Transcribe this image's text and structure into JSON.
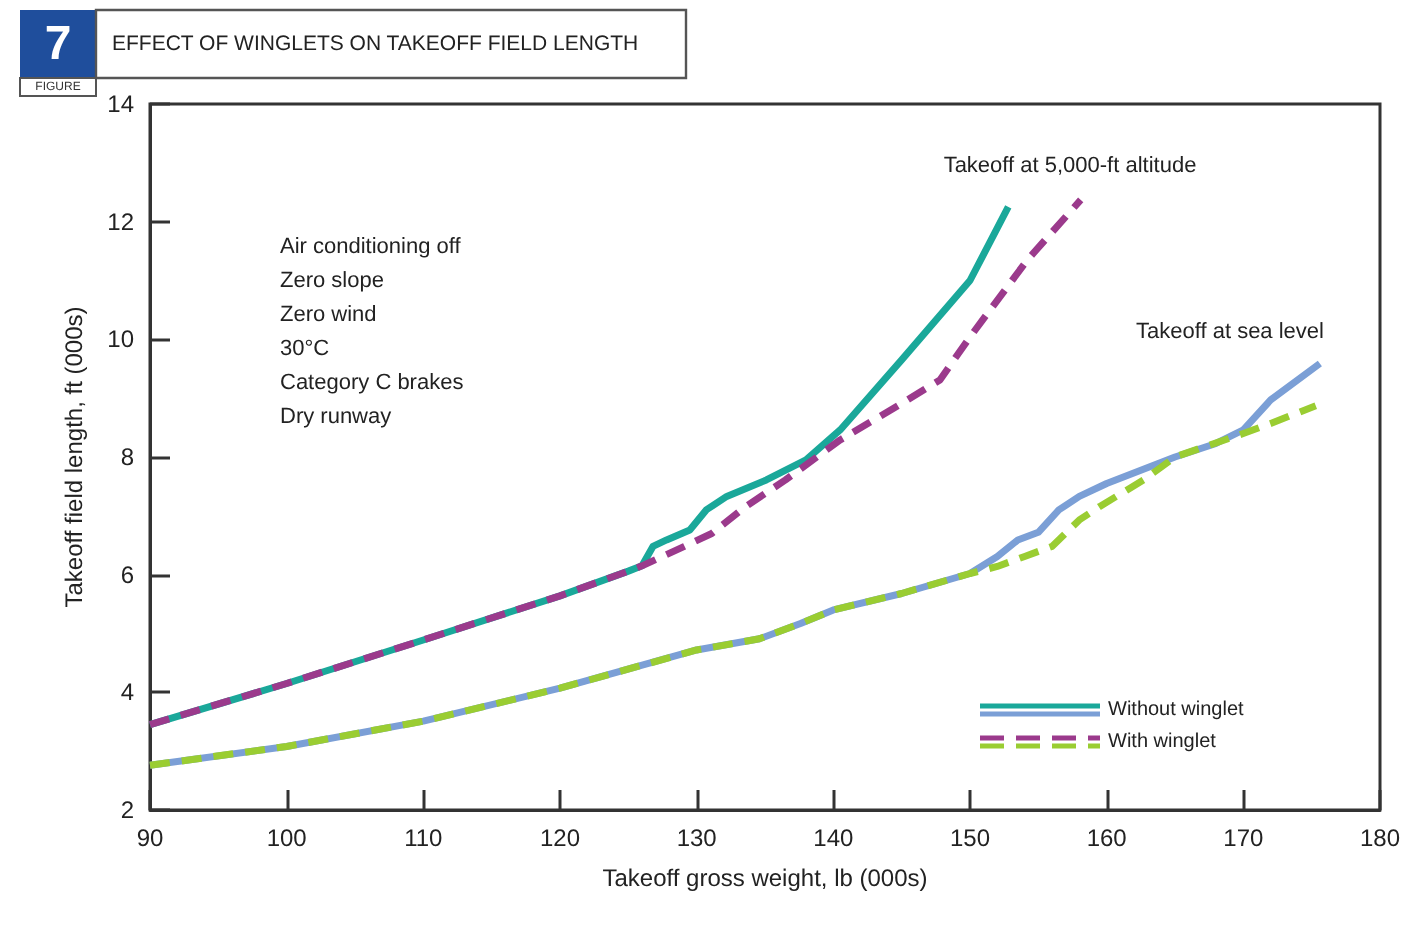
{
  "chart_data": {
    "type": "line",
    "title": "EFFECT OF WINGLETS ON TAKEOFF FIELD LENGTH",
    "xlabel": "Takeoff gross weight, lb (000s)",
    "ylabel": "Takeoff field length, ft (000s)",
    "annotations": [
      "7",
      "FIGURE",
      "Air conditioning off\nZero slope\nZero wind\n30°C\nCategory C brakes\nDry runway",
      "Takeoff at 5,000-ft altitude",
      "Takeoff at sea level"
    ],
    "series": [
      {
        "name": "Without winglet",
        "color": "#1aa89a",
        "line_style": "solid",
        "x": [
          90,
          100,
          110,
          120,
          125,
          126,
          126.8,
          127.8,
          129.5,
          130.7,
          132.2,
          135.1,
          138.0,
          140.5,
          145,
          150,
          152.8
        ],
        "values": [
          3.45,
          4.15,
          4.89,
          5.64,
          6.06,
          6.15,
          6.48,
          6.59,
          6.76,
          7.1,
          7.33,
          7.61,
          7.95,
          8.46,
          9.65,
          11.0,
          12.25
        ]
      },
      {
        "name": "With winglet",
        "color": "#9b3a8c",
        "line_style": "dashed",
        "x": [
          90,
          100,
          110,
          120,
          125,
          126,
          129.1,
          131.1,
          133.6,
          136.5,
          140.5,
          145,
          147.8,
          150,
          154.2,
          158.1
        ],
        "values": [
          3.45,
          4.15,
          4.89,
          5.64,
          6.06,
          6.15,
          6.48,
          6.7,
          7.16,
          7.61,
          8.29,
          8.91,
          9.31,
          10.04,
          11.35,
          12.37
        ]
      },
      {
        "color": "#7b9fd6",
        "line_style": "solid",
        "x": [
          90,
          100,
          110,
          120,
          130,
          134.6,
          137.6,
          140,
          145,
          150,
          152,
          153.5,
          155,
          156.5,
          158,
          160,
          165,
          168,
          170,
          172,
          175.6
        ],
        "values": [
          2.76,
          3.08,
          3.51,
          4.07,
          4.72,
          4.91,
          5.17,
          5.4,
          5.68,
          6.02,
          6.31,
          6.59,
          6.72,
          7.1,
          7.33,
          7.55,
          8.0,
          8.23,
          8.46,
          8.97,
          9.59
        ]
      },
      {
        "color": "#9acd32",
        "line_style": "dashed",
        "x": [
          90,
          100,
          110,
          120,
          130,
          134.6,
          137.6,
          140,
          145,
          150,
          152,
          154,
          156,
          158,
          159.5,
          162.7,
          165,
          170,
          172,
          175.3
        ],
        "values": [
          2.76,
          3.08,
          3.51,
          4.07,
          4.72,
          4.91,
          5.17,
          5.4,
          5.68,
          6.02,
          6.14,
          6.31,
          6.48,
          6.93,
          7.16,
          7.61,
          8.0,
          8.4,
          8.57,
          8.87
        ]
      }
    ],
    "xlim": [
      90,
      180
    ],
    "xticks": [
      90,
      100,
      110,
      120,
      130,
      140,
      150,
      160,
      170,
      180
    ],
    "ylim": [
      2,
      14
    ],
    "yticks": [
      2,
      4,
      6,
      8,
      10,
      12,
      14
    ],
    "grid": false,
    "legend": "bottom right",
    "marker": "none"
  }
}
